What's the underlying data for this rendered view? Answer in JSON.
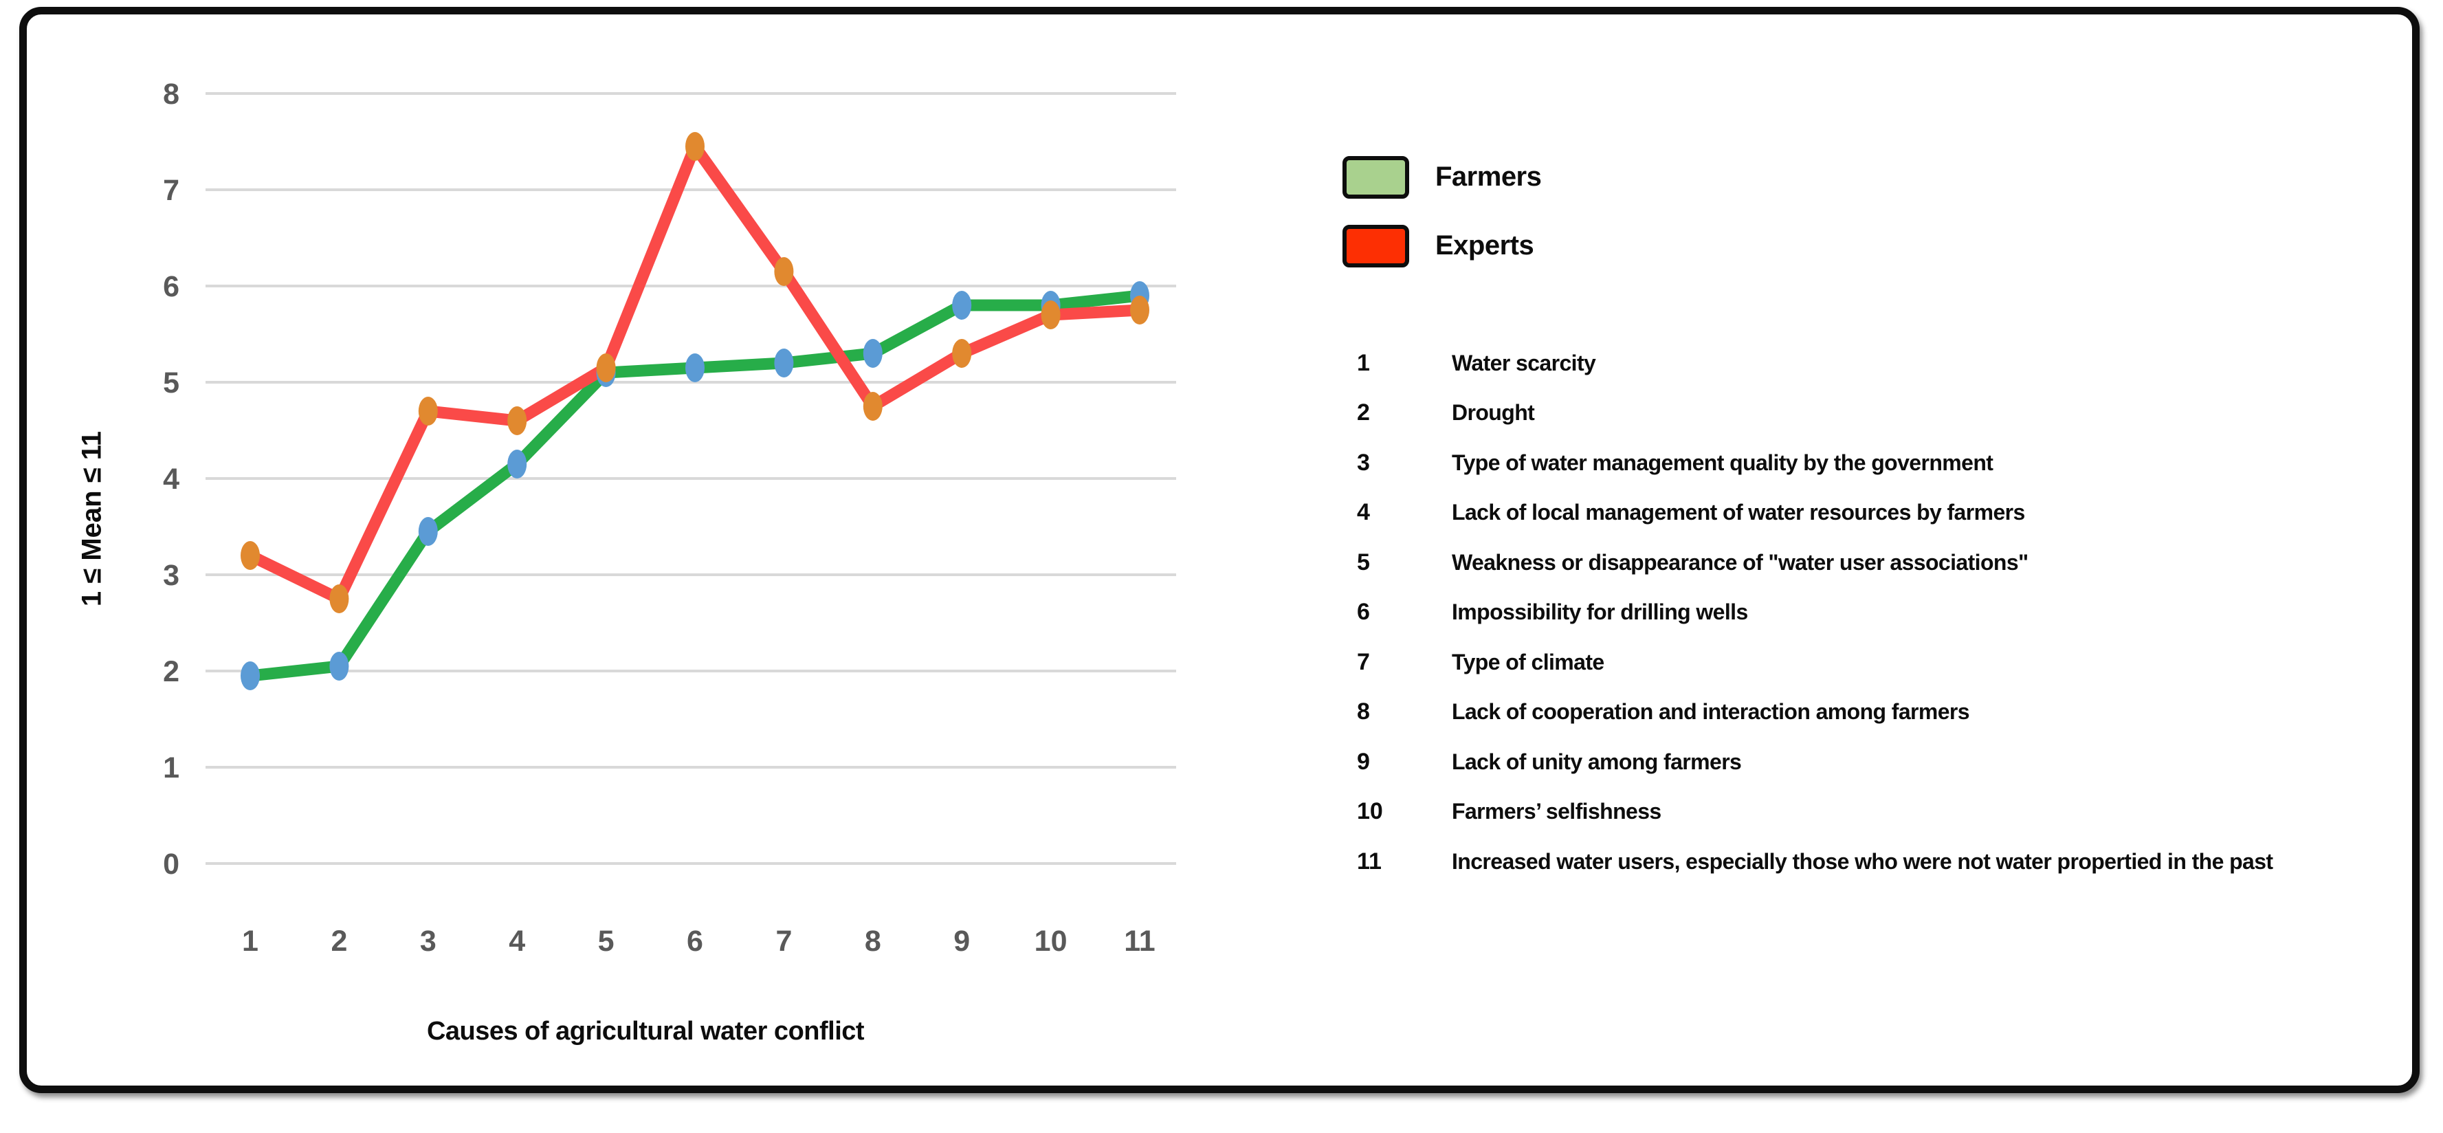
{
  "chart_data": {
    "type": "line",
    "categories": [
      "1",
      "2",
      "3",
      "4",
      "5",
      "6",
      "7",
      "8",
      "9",
      "10",
      "11"
    ],
    "series": [
      {
        "name": "Farmers",
        "line_color": "#27ad49",
        "marker_color": "#5b9bd5",
        "values": [
          1.95,
          2.05,
          3.45,
          4.15,
          5.1,
          5.15,
          5.2,
          5.3,
          5.8,
          5.8,
          5.9
        ]
      },
      {
        "name": "Experts",
        "line_color": "#fa4a48",
        "marker_color": "#e1892f",
        "values": [
          3.2,
          2.75,
          4.7,
          4.6,
          5.15,
          7.45,
          6.15,
          4.75,
          5.3,
          5.7,
          5.75
        ]
      }
    ],
    "title": "",
    "xlabel": "Causes of agricultural water conflict",
    "ylabel": "1 ≤ Mean ≤ 11",
    "ylim": [
      0,
      8
    ],
    "yticks": [
      0,
      1,
      2,
      3,
      4,
      5,
      6,
      7,
      8
    ],
    "grid": true,
    "gridline_color": "#d9d9d9",
    "tick_color": "#595959",
    "legend_position": "upper-right-outside"
  },
  "legend": {
    "items": [
      {
        "label": "Farmers",
        "swatch_color": "#a9d18e",
        "border_color": "#0d0d0d"
      },
      {
        "label": "Experts",
        "swatch_color": "#fd2f03",
        "border_color": "#0d0d0d"
      }
    ]
  },
  "causes": [
    {
      "num": "1",
      "text": "Water scarcity"
    },
    {
      "num": "2",
      "text": "Drought"
    },
    {
      "num": "3",
      "text": "Type of water management quality by the government"
    },
    {
      "num": "4",
      "text": "Lack of local management of water resources by farmers"
    },
    {
      "num": "5",
      "text": "Weakness or disappearance of \"water user associations\""
    },
    {
      "num": "6",
      "text": "Impossibility for drilling wells"
    },
    {
      "num": "7",
      "text": "Type of climate"
    },
    {
      "num": "8",
      "text": "Lack of cooperation and interaction among farmers"
    },
    {
      "num": "9",
      "text": "Lack of unity among farmers"
    },
    {
      "num": "10",
      "text": "Farmers’ selfishness"
    },
    {
      "num": "11",
      "text": "Increased water users, especially those who were not water propertied in the past"
    }
  ]
}
